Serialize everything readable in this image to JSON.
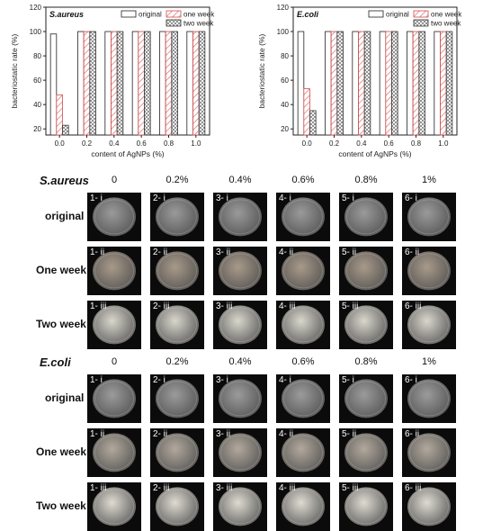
{
  "chart_data": [
    {
      "type": "bar",
      "panel_label": "S.aureus",
      "categories": [
        "0.0",
        "0.2",
        "0.4",
        "0.6",
        "0.8",
        "1.0"
      ],
      "series": [
        {
          "name": "original",
          "values": [
            98,
            100,
            100,
            100,
            100,
            100
          ]
        },
        {
          "name": "one week",
          "values": [
            48,
            100,
            100,
            100,
            100,
            100
          ]
        },
        {
          "name": "two week",
          "values": [
            23,
            100,
            100,
            100,
            100,
            100
          ]
        }
      ],
      "xlabel": "content of AgNPs (%)",
      "ylabel": "bacteriostatic rate (%)",
      "ylim": [
        15,
        120
      ],
      "yticks": [
        20,
        40,
        60,
        80,
        100,
        120
      ],
      "grid": false,
      "legend": "top-right"
    },
    {
      "type": "bar",
      "panel_label": "E.coli",
      "categories": [
        "0.0",
        "0.2",
        "0.4",
        "0.6",
        "0.8",
        "1.0"
      ],
      "series": [
        {
          "name": "original",
          "values": [
            100,
            100,
            100,
            100,
            100,
            100
          ]
        },
        {
          "name": "one week",
          "values": [
            53,
            100,
            100,
            100,
            100,
            100
          ]
        },
        {
          "name": "two week",
          "values": [
            35,
            100,
            100,
            100,
            100,
            100
          ]
        }
      ],
      "xlabel": "content of AgNPs (%)",
      "ylabel": "bacteriostatic rate (%)",
      "ylim": [
        15,
        120
      ],
      "yticks": [
        20,
        40,
        60,
        80,
        100,
        120
      ],
      "grid": false,
      "legend": "top-right"
    }
  ],
  "grids": [
    {
      "title": "S.aureus",
      "columns": [
        "0",
        "0.2%",
        "0.4%",
        "0.6%",
        "0.8%",
        "1%"
      ],
      "rows": [
        {
          "label": "original",
          "cells": [
            "1- i",
            "2- i",
            "3- i",
            "4- i",
            "5- i",
            "6- i"
          ],
          "tone": "#9a9a9a"
        },
        {
          "label": "One week",
          "cells": [
            "1- ii",
            "2- ii",
            "3- ii",
            "4- ii",
            "5- ii",
            "6- ii"
          ],
          "tone": "#a89a8a"
        },
        {
          "label": "Two week",
          "cells": [
            "1- iii",
            "2- iii",
            "3- iii",
            "4- iii",
            "5- iii",
            "6- iii"
          ],
          "tone": "#d9d6cc"
        }
      ]
    },
    {
      "title": "E.coli",
      "columns": [
        "0",
        "0.2%",
        "0.4%",
        "0.6%",
        "0.8%",
        "1%"
      ],
      "rows": [
        {
          "label": "original",
          "cells": [
            "1- i",
            "2- i",
            "3- i",
            "4- i",
            "5- i",
            "6- i"
          ],
          "tone": "#9b9b9b"
        },
        {
          "label": "One week",
          "cells": [
            "1- ii",
            "2- ii",
            "3- ii",
            "4- ii",
            "5- ii",
            "6- ii"
          ],
          "tone": "#b2a99d"
        },
        {
          "label": "Two week",
          "cells": [
            "1- iii",
            "2- iii",
            "3- iii",
            "4- iii",
            "5- iii",
            "6- iii"
          ],
          "tone": "#dedbd1"
        }
      ]
    }
  ]
}
